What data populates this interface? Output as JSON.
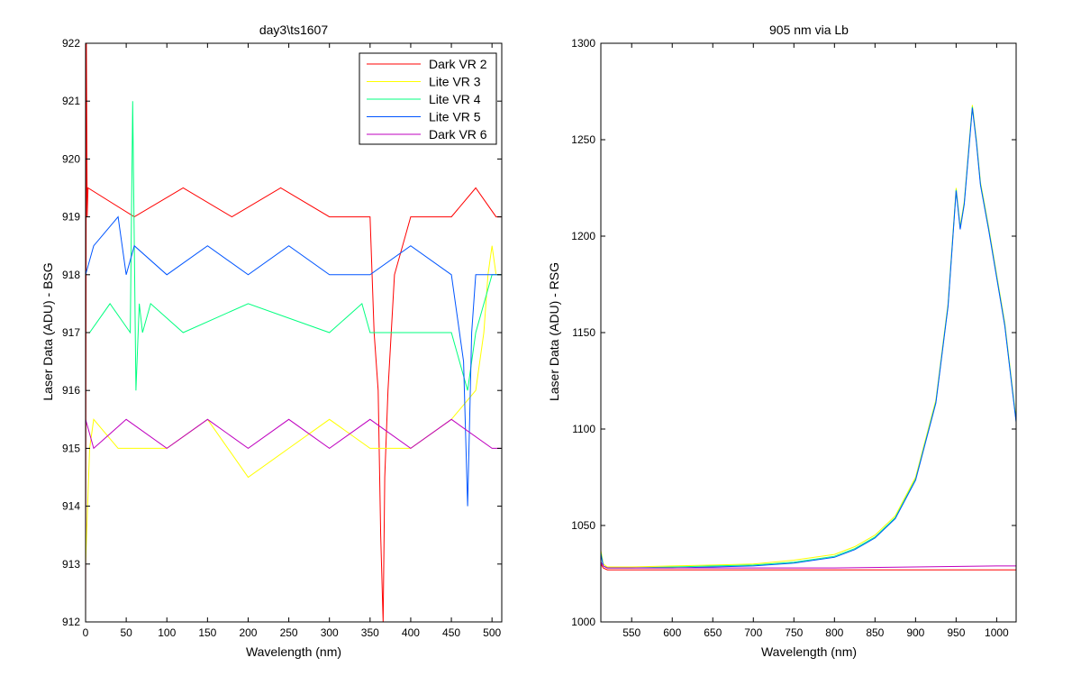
{
  "chart_data": [
    {
      "type": "line",
      "title": "day3\\ts1607",
      "xlabel": "Wavelength (nm)",
      "ylabel": "Laser Data (ADU) - BSG",
      "xlim": [
        0,
        512
      ],
      "ylim": [
        912,
        922
      ],
      "xticks": [
        0,
        50,
        100,
        150,
        200,
        250,
        300,
        350,
        400,
        450,
        500
      ],
      "yticks": [
        912,
        913,
        914,
        915,
        916,
        917,
        918,
        919,
        920,
        921,
        922
      ],
      "grid": false,
      "legend_position": "top-right",
      "series": [
        {
          "name": "Dark VR 2",
          "color": "#ff0000",
          "x": [
            0,
            1,
            2,
            3,
            60,
            120,
            180,
            240,
            300,
            350,
            355,
            360,
            363,
            366,
            368,
            372,
            376,
            380,
            400,
            450,
            480,
            505,
            511
          ],
          "y": [
            912,
            922,
            919,
            919.5,
            919,
            919.5,
            919,
            919.5,
            919,
            919,
            917,
            916,
            913.5,
            912,
            914.5,
            916,
            917,
            918,
            919,
            919,
            919.5,
            919,
            919
          ]
        },
        {
          "name": "Lite VR 3",
          "color": "#ffff00",
          "x": [
            0,
            5,
            10,
            40,
            100,
            150,
            200,
            250,
            300,
            350,
            400,
            450,
            480,
            490,
            495,
            500,
            505,
            511
          ],
          "y": [
            913,
            915,
            915.5,
            915,
            915,
            915.5,
            914.5,
            915,
            915.5,
            915,
            915,
            915.5,
            916,
            917,
            918,
            918.5,
            918,
            918
          ]
        },
        {
          "name": "Lite VR 4",
          "color": "#00ff7f",
          "x": [
            0,
            5,
            30,
            55,
            58,
            62,
            66,
            70,
            80,
            120,
            200,
            300,
            340,
            350,
            400,
            450,
            470,
            480,
            500,
            511
          ],
          "y": [
            917,
            917,
            917.5,
            917,
            921,
            916,
            917.5,
            917,
            917.5,
            917,
            917.5,
            917,
            917.5,
            917,
            917,
            917,
            916,
            917,
            918,
            918
          ]
        },
        {
          "name": "Lite VR 5",
          "color": "#0055ff",
          "x": [
            0,
            10,
            40,
            50,
            60,
            100,
            150,
            200,
            250,
            300,
            350,
            400,
            450,
            460,
            465,
            470,
            475,
            480,
            500,
            511
          ],
          "y": [
            918,
            918.5,
            919,
            918,
            918.5,
            918,
            918.5,
            918,
            918.5,
            918,
            918,
            918.5,
            918,
            917,
            916.5,
            914,
            917,
            918,
            918,
            918
          ]
        },
        {
          "name": "Dark VR 6",
          "color": "#bf00bf",
          "x": [
            0,
            10,
            50,
            100,
            150,
            200,
            250,
            300,
            350,
            400,
            450,
            500,
            511
          ],
          "y": [
            915.5,
            915,
            915.5,
            915,
            915.5,
            915,
            915.5,
            915,
            915.5,
            915,
            915.5,
            915,
            915
          ]
        }
      ]
    },
    {
      "type": "line",
      "title": "905 nm via Lb",
      "xlabel": "Wavelength (nm)",
      "ylabel": "Laser Data (ADU) - RSG",
      "xlim": [
        512,
        1024
      ],
      "ylim": [
        1000,
        1300
      ],
      "xticks": [
        550,
        600,
        650,
        700,
        750,
        800,
        850,
        900,
        950,
        1000
      ],
      "yticks": [
        1000,
        1050,
        1100,
        1150,
        1200,
        1250,
        1300
      ],
      "grid": false,
      "legend_position": "none",
      "series": [
        {
          "color": "#ffff00",
          "x": [
            512,
            515,
            520,
            550,
            600,
            650,
            700,
            750,
            800,
            825,
            850,
            875,
            900,
            925,
            940,
            950,
            955,
            960,
            965,
            970,
            975,
            980,
            990,
            1000,
            1010,
            1024
          ],
          "y": [
            1037,
            1030,
            1028.5,
            1028.5,
            1029,
            1029.5,
            1030,
            1032,
            1035,
            1039,
            1045,
            1055,
            1075,
            1115,
            1165,
            1225,
            1205,
            1218,
            1243,
            1268,
            1250,
            1228,
            1205,
            1180,
            1155,
            1105
          ]
        },
        {
          "color": "#00ff7f",
          "x": [
            512,
            515,
            520,
            550,
            600,
            650,
            700,
            750,
            800,
            825,
            850,
            875,
            900,
            925,
            940,
            950,
            955,
            960,
            965,
            970,
            975,
            980,
            990,
            1000,
            1010,
            1024
          ],
          "y": [
            1036,
            1029,
            1028,
            1028,
            1028.5,
            1029,
            1029.5,
            1031,
            1034,
            1038,
            1044,
            1054,
            1074,
            1114,
            1164,
            1224,
            1204,
            1217,
            1242,
            1267,
            1249,
            1227,
            1204,
            1179,
            1154,
            1104
          ]
        },
        {
          "color": "#0055ff",
          "x": [
            512,
            515,
            520,
            550,
            600,
            650,
            700,
            750,
            800,
            825,
            850,
            875,
            900,
            925,
            940,
            950,
            955,
            960,
            965,
            970,
            975,
            980,
            990,
            1000,
            1010,
            1024
          ],
          "y": [
            1035,
            1029,
            1028,
            1028,
            1028,
            1028.5,
            1029,
            1030.5,
            1033.5,
            1037.5,
            1043.5,
            1053.5,
            1073.5,
            1113.5,
            1163.5,
            1223.5,
            1203.5,
            1216.5,
            1241.5,
            1266.5,
            1248.5,
            1226.5,
            1203.5,
            1178.5,
            1153.5,
            1103.5
          ]
        },
        {
          "color": "#ff0000",
          "x": [
            512,
            515,
            520,
            600,
            700,
            800,
            900,
            1000,
            1024
          ],
          "y": [
            1030,
            1028,
            1027,
            1027,
            1027,
            1027,
            1027,
            1027,
            1027
          ]
        },
        {
          "color": "#bf00bf",
          "x": [
            512,
            515,
            520,
            600,
            700,
            800,
            900,
            1000,
            1024
          ],
          "y": [
            1031,
            1029,
            1028,
            1028,
            1028,
            1028,
            1028.5,
            1029,
            1029
          ]
        }
      ]
    }
  ]
}
